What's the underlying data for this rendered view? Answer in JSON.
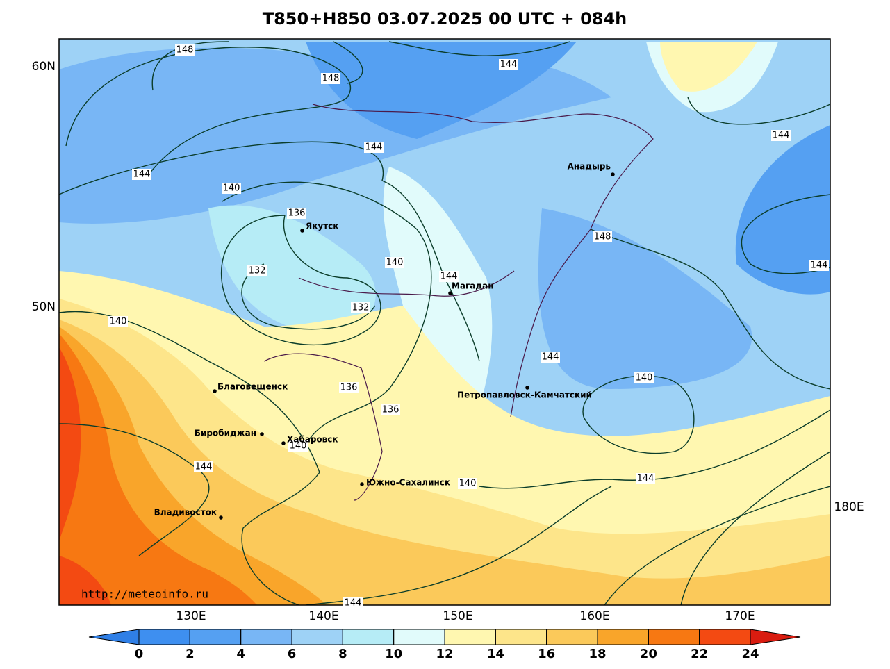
{
  "title": "T850+H850 03.07.2025 00 UTC + 084h",
  "lat_labels": [
    "60N",
    "50N"
  ],
  "lon_labels": [
    "130E",
    "140E",
    "150E",
    "160E",
    "170E",
    "180E"
  ],
  "cities": [
    "Якутск",
    "Магадан",
    "Анадырь",
    "Благовещенск",
    "Биробиджан",
    "Хабаровск",
    "Южно-Сахалинск",
    "Владивосток",
    "Петропавловск-Камчатский"
  ],
  "contour_labels": [
    148,
    148,
    144,
    144,
    144,
    144,
    140,
    136,
    132,
    140,
    144,
    132,
    148,
    144,
    140,
    144,
    140,
    136,
    136,
    140,
    144,
    140,
    144,
    144
  ],
  "url": "http://meteoinfo.ru",
  "colorbar": {
    "ticks": [
      0,
      2,
      4,
      6,
      8,
      10,
      12,
      14,
      16,
      18,
      20,
      22,
      24
    ],
    "under_color": "#2f7fe6",
    "colors": [
      "#3e8ff0",
      "#55a0f2",
      "#78b6f5",
      "#9ed2f6",
      "#b6ecf6",
      "#e1fbfb",
      "#fff7b0",
      "#fde58a",
      "#fbc95a",
      "#f9a52a",
      "#f77812",
      "#f34a12"
    ],
    "over_color": "#d91c10"
  }
}
